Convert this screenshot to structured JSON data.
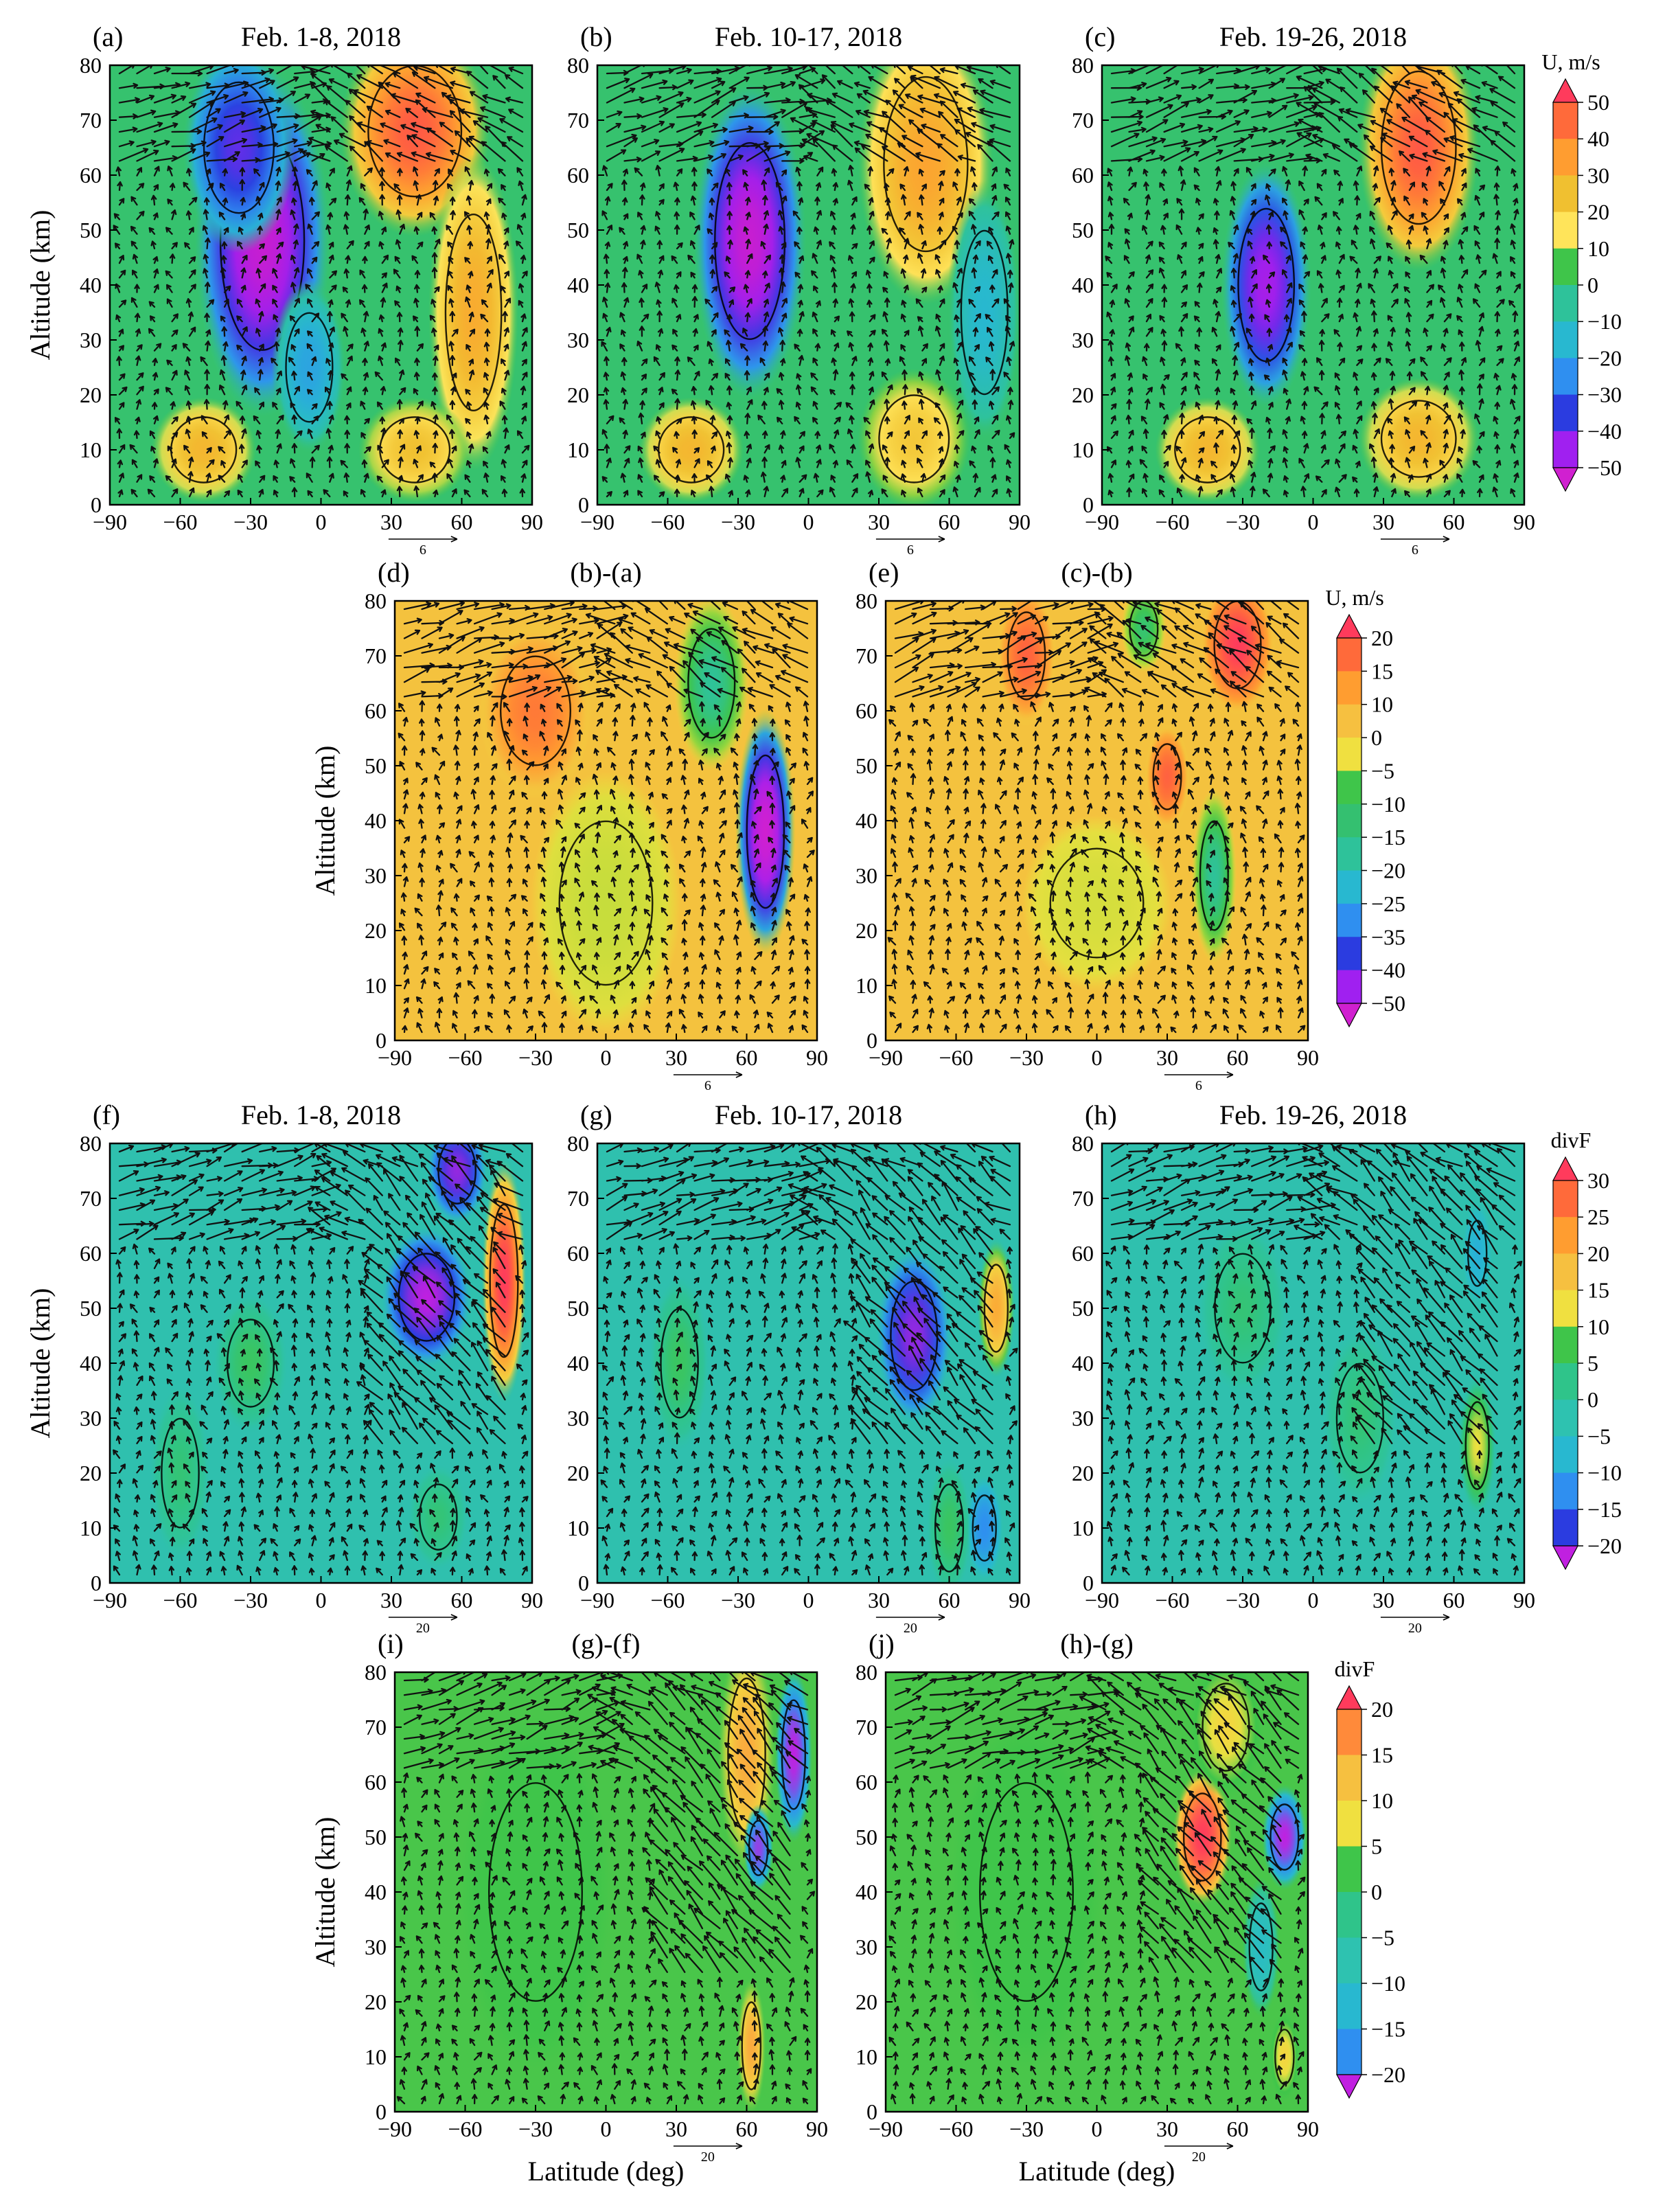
{
  "chart_data": {
    "type": "heatmap",
    "axes": {
      "xlabel": "Latitude (deg)",
      "ylabel": "Altitude (km)",
      "xlim": [
        -90,
        90
      ],
      "ylim": [
        0,
        80
      ],
      "xticks": [
        -90,
        -60,
        -30,
        0,
        30,
        60,
        90
      ],
      "yticks": [
        0,
        10,
        20,
        30,
        40,
        50,
        60,
        70,
        80
      ]
    },
    "colorbars": [
      {
        "id": "cb-u",
        "title": "U, m/s",
        "levels": [
          50,
          40,
          30,
          20,
          10,
          0,
          -10,
          -20,
          -30,
          -40,
          -50
        ],
        "colors": [
          "#ff3b5c",
          "#ff6a3a",
          "#ff9d30",
          "#f0c030",
          "#ffe45a",
          "#3fc54a",
          "#2ec29a",
          "#28b8d0",
          "#2f8ff0",
          "#2b3ce0",
          "#a020f0",
          "#d020d0"
        ]
      },
      {
        "id": "cb-ud",
        "title": "U, m/s",
        "levels": [
          20,
          15,
          10,
          0,
          -5,
          -10,
          -15,
          -20,
          -25,
          -35,
          -40,
          -50
        ],
        "colors": [
          "#ff3b5c",
          "#ff6a3a",
          "#ff9d30",
          "#f6c040",
          "#f0e040",
          "#3fc54a",
          "#34c070",
          "#2ec29a",
          "#28b8d0",
          "#2f8ff0",
          "#2b3ce0",
          "#a020f0",
          "#d020d0"
        ]
      },
      {
        "id": "cb-f",
        "title": "divF",
        "levels": [
          30,
          25,
          20,
          15,
          10,
          5,
          0,
          -5,
          -10,
          -15,
          -20
        ],
        "colors": [
          "#ff3b5c",
          "#ff6a3a",
          "#ff9d30",
          "#f6c040",
          "#f0e040",
          "#3fc54a",
          "#2fc48a",
          "#2ec2b0",
          "#28b8d0",
          "#2f8ff0",
          "#2b3ce0",
          "#c020e0"
        ]
      },
      {
        "id": "cb-fd",
        "title": "divF",
        "levels": [
          20,
          15,
          10,
          5,
          0,
          -5,
          -10,
          -15,
          -20
        ],
        "colors": [
          "#ff3b5c",
          "#ff8a3a",
          "#f6c040",
          "#f0e040",
          "#3fc54a",
          "#2fc48a",
          "#2ec2b0",
          "#28b8d0",
          "#2f8ff0",
          "#c020e0"
        ]
      }
    ],
    "panels": [
      {
        "id": "a",
        "letter": "(a)",
        "title": "Feb. 1-8, 2018",
        "difference": "",
        "field": "U",
        "vector_scale": "6",
        "colorbar": "cb-u",
        "features": [
          {
            "lat": -25,
            "alt": 48,
            "value": -55,
            "spread": [
              18,
              20
            ]
          },
          {
            "lat": -35,
            "alt": 65,
            "value": -40,
            "spread": [
              15,
              12
            ]
          },
          {
            "lat": 40,
            "alt": 68,
            "value": 45,
            "spread": [
              20,
              12
            ]
          },
          {
            "lat": 65,
            "alt": 35,
            "value": 28,
            "spread": [
              12,
              18
            ]
          },
          {
            "lat": -50,
            "alt": 10,
            "value": 25,
            "spread": [
              14,
              6
            ]
          },
          {
            "lat": 40,
            "alt": 10,
            "value": 22,
            "spread": [
              15,
              6
            ]
          },
          {
            "lat": -5,
            "alt": 25,
            "value": -20,
            "spread": [
              10,
              10
            ]
          }
        ]
      },
      {
        "id": "b",
        "letter": "(b)",
        "title": "Feb. 10-17, 2018",
        "difference": "",
        "field": "U",
        "vector_scale": "6",
        "colorbar": "cb-u",
        "features": [
          {
            "lat": -25,
            "alt": 48,
            "value": -55,
            "spread": [
              15,
              18
            ]
          },
          {
            "lat": 50,
            "alt": 62,
            "value": 30,
            "spread": [
              18,
              16
            ]
          },
          {
            "lat": -50,
            "alt": 10,
            "value": 25,
            "spread": [
              14,
              6
            ]
          },
          {
            "lat": 45,
            "alt": 12,
            "value": 20,
            "spread": [
              15,
              8
            ]
          },
          {
            "lat": 75,
            "alt": 35,
            "value": -15,
            "spread": [
              10,
              15
            ]
          }
        ]
      },
      {
        "id": "c",
        "letter": "(c)",
        "title": "Feb. 19-26, 2018",
        "difference": "",
        "field": "U",
        "vector_scale": "6",
        "colorbar": "cb-u",
        "features": [
          {
            "lat": -20,
            "alt": 40,
            "value": -48,
            "spread": [
              12,
              14
            ]
          },
          {
            "lat": 45,
            "alt": 65,
            "value": 45,
            "spread": [
              16,
              14
            ]
          },
          {
            "lat": -45,
            "alt": 10,
            "value": 25,
            "spread": [
              14,
              6
            ]
          },
          {
            "lat": 45,
            "alt": 12,
            "value": 25,
            "spread": [
              16,
              7
            ]
          }
        ]
      },
      {
        "id": "d",
        "letter": "(d)",
        "title": "",
        "difference": "(b)-(a)",
        "field": "dU",
        "vector_scale": "6",
        "colorbar": "cb-ud",
        "features": [
          {
            "lat": 68,
            "alt": 38,
            "value": -50,
            "spread": [
              8,
              14
            ]
          },
          {
            "lat": -30,
            "alt": 60,
            "value": 15,
            "spread": [
              15,
              10
            ]
          },
          {
            "lat": 45,
            "alt": 65,
            "value": -12,
            "spread": [
              10,
              10
            ]
          },
          {
            "lat": 0,
            "alt": 25,
            "value": -3,
            "spread": [
              20,
              15
            ]
          }
        ]
      },
      {
        "id": "e",
        "letter": "(e)",
        "title": "",
        "difference": "(c)-(b)",
        "field": "dU",
        "vector_scale": "6",
        "colorbar": "cb-ud",
        "features": [
          {
            "lat": 60,
            "alt": 72,
            "value": 22,
            "spread": [
              10,
              8
            ]
          },
          {
            "lat": -30,
            "alt": 70,
            "value": 18,
            "spread": [
              8,
              8
            ]
          },
          {
            "lat": 30,
            "alt": 48,
            "value": 18,
            "spread": [
              6,
              6
            ]
          },
          {
            "lat": 50,
            "alt": 30,
            "value": -12,
            "spread": [
              6,
              10
            ]
          },
          {
            "lat": 20,
            "alt": 75,
            "value": -10,
            "spread": [
              6,
              5
            ]
          },
          {
            "lat": 0,
            "alt": 25,
            "value": -2,
            "spread": [
              20,
              10
            ]
          }
        ]
      },
      {
        "id": "f",
        "letter": "(f)",
        "title": "Feb. 1-8, 2018",
        "difference": "",
        "field": "divF",
        "vector_scale": "20",
        "colorbar": "cb-f",
        "features": [
          {
            "lat": 45,
            "alt": 52,
            "value": -22,
            "spread": [
              12,
              8
            ]
          },
          {
            "lat": 58,
            "alt": 75,
            "value": -20,
            "spread": [
              8,
              6
            ]
          },
          {
            "lat": 78,
            "alt": 55,
            "value": 30,
            "spread": [
              6,
              14
            ]
          },
          {
            "lat": -30,
            "alt": 40,
            "value": 6,
            "spread": [
              10,
              8
            ]
          },
          {
            "lat": -60,
            "alt": 20,
            "value": 5,
            "spread": [
              8,
              10
            ]
          },
          {
            "lat": 50,
            "alt": 12,
            "value": 5,
            "spread": [
              8,
              6
            ]
          }
        ]
      },
      {
        "id": "g",
        "letter": "(g)",
        "title": "Feb. 10-17, 2018",
        "difference": "",
        "field": "divF",
        "vector_scale": "20",
        "colorbar": "cb-f",
        "features": [
          {
            "lat": 45,
            "alt": 45,
            "value": -20,
            "spread": [
              10,
              10
            ]
          },
          {
            "lat": 80,
            "alt": 50,
            "value": 18,
            "spread": [
              5,
              8
            ]
          },
          {
            "lat": 75,
            "alt": 10,
            "value": -10,
            "spread": [
              5,
              6
            ]
          },
          {
            "lat": -55,
            "alt": 40,
            "value": 6,
            "spread": [
              8,
              10
            ]
          },
          {
            "lat": 60,
            "alt": 10,
            "value": 6,
            "spread": [
              6,
              8
            ]
          }
        ]
      },
      {
        "id": "h",
        "letter": "(h)",
        "title": "Feb. 19-26, 2018",
        "difference": "",
        "field": "divF",
        "vector_scale": "20",
        "colorbar": "cb-f",
        "features": [
          {
            "lat": 70,
            "alt": 60,
            "value": -6,
            "spread": [
              4,
              6
            ]
          },
          {
            "lat": 70,
            "alt": 25,
            "value": 10,
            "spread": [
              5,
              8
            ]
          },
          {
            "lat": -30,
            "alt": 50,
            "value": 5,
            "spread": [
              12,
              10
            ]
          },
          {
            "lat": 20,
            "alt": 30,
            "value": 5,
            "spread": [
              10,
              10
            ]
          }
        ]
      },
      {
        "id": "i",
        "letter": "(i)",
        "title": "",
        "difference": "(g)-(f)",
        "field": "ddivF",
        "vector_scale": "20",
        "colorbar": "cb-fd",
        "features": [
          {
            "lat": 80,
            "alt": 65,
            "value": -22,
            "spread": [
              5,
              10
            ]
          },
          {
            "lat": 60,
            "alt": 65,
            "value": 12,
            "spread": [
              8,
              14
            ]
          },
          {
            "lat": 65,
            "alt": 48,
            "value": -20,
            "spread": [
              4,
              5
            ]
          },
          {
            "lat": 62,
            "alt": 12,
            "value": 12,
            "spread": [
              4,
              8
            ]
          },
          {
            "lat": -30,
            "alt": 40,
            "value": 4,
            "spread": [
              20,
              20
            ]
          }
        ]
      },
      {
        "id": "j",
        "letter": "(j)",
        "title": "",
        "difference": "(h)-(g)",
        "field": "ddivF",
        "vector_scale": "20",
        "colorbar": "cb-fd",
        "features": [
          {
            "lat": 45,
            "alt": 50,
            "value": 22,
            "spread": [
              8,
              8
            ]
          },
          {
            "lat": 80,
            "alt": 50,
            "value": -22,
            "spread": [
              6,
              6
            ]
          },
          {
            "lat": 55,
            "alt": 70,
            "value": 8,
            "spread": [
              10,
              8
            ]
          },
          {
            "lat": 70,
            "alt": 30,
            "value": -8,
            "spread": [
              5,
              8
            ]
          },
          {
            "lat": 80,
            "alt": 10,
            "value": 8,
            "spread": [
              4,
              5
            ]
          },
          {
            "lat": -30,
            "alt": 40,
            "value": 4,
            "spread": [
              20,
              20
            ]
          }
        ]
      }
    ]
  }
}
